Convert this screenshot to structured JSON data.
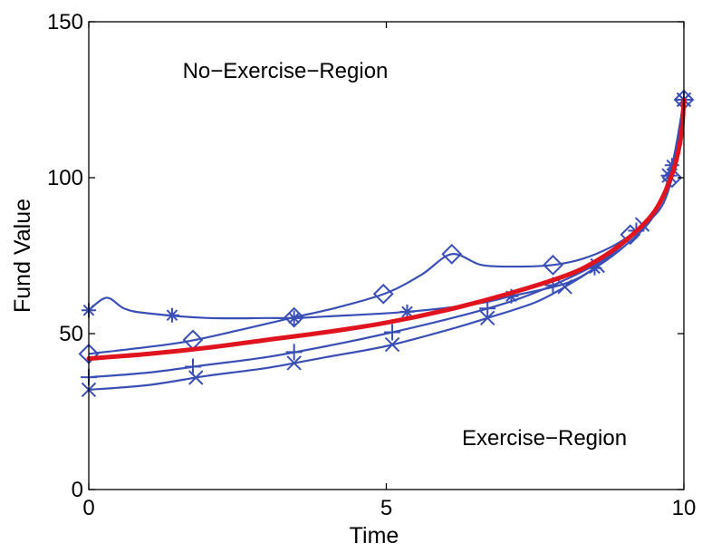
{
  "chart_data": {
    "type": "line",
    "title": "",
    "xlabel": "Time",
    "ylabel": "Fund Value",
    "xlim": [
      0,
      10
    ],
    "ylim": [
      0,
      150
    ],
    "xticks": [
      0,
      5,
      10
    ],
    "yticks": [
      0,
      50,
      100,
      150
    ],
    "grid": false,
    "annotations": [
      {
        "text": "No−Exercise−Region",
        "x": 2.1,
        "y": 136.5
      },
      {
        "text": "Exercise−Region",
        "x": 8.0,
        "y": 17.8
      }
    ],
    "colors": {
      "series": "#3a4fb5",
      "boundary": "#e0141e"
    },
    "series": [
      {
        "marker": "diamond",
        "x": [
          0,
          1.5,
          2.5,
          3.4,
          4.2,
          5.0,
          5.6,
          6.1,
          6.6,
          7.2,
          7.8,
          8.3,
          8.8,
          9.2,
          9.6,
          9.8,
          9.95,
          10
        ],
        "y": [
          43.5,
          47,
          51,
          55,
          58.5,
          63,
          69,
          75.5,
          72,
          71.5,
          72,
          74,
          78,
          83,
          90,
          100,
          115,
          125
        ],
        "markers_x": [
          0,
          1.75,
          3.45,
          4.95,
          6.1,
          7.8,
          9.1,
          9.8,
          10
        ]
      },
      {
        "marker": "asterisk",
        "x": [
          0,
          0.3,
          0.6,
          1.0,
          2.0,
          3.0,
          3.5,
          4.0,
          5.35,
          6.5,
          7.1,
          8.0,
          8.5,
          9.0,
          9.5,
          9.8,
          10
        ],
        "y": [
          57.5,
          61.5,
          58,
          56.5,
          55,
          55,
          55,
          55.5,
          57,
          59.5,
          62,
          66,
          71,
          78,
          88,
          104,
          125
        ],
        "markers_x": [
          0,
          1.4,
          3.45,
          5.35,
          7.1,
          8.5,
          9.8,
          10
        ]
      },
      {
        "marker": "plus",
        "x": [
          0,
          1.0,
          2.0,
          3.0,
          4.0,
          5.0,
          6.0,
          6.6,
          7.2,
          7.8,
          8.5,
          9.0,
          9.5,
          9.8,
          10
        ],
        "y": [
          36,
          37.5,
          40,
          42.5,
          46,
          50,
          54.5,
          57.5,
          61,
          65.5,
          72,
          79,
          89,
          103,
          125
        ],
        "markers_x": [
          0,
          1.75,
          3.45,
          5.1,
          6.7,
          7.8,
          9.2,
          9.75,
          10
        ]
      },
      {
        "marker": "cross",
        "x": [
          0,
          1.0,
          2.0,
          3.0,
          4.0,
          5.0,
          6.0,
          6.7,
          7.5,
          8.0,
          8.5,
          9.0,
          9.5,
          9.8,
          10
        ],
        "y": [
          32,
          33.5,
          36.5,
          39,
          42.5,
          46,
          51,
          55,
          60,
          65,
          71,
          79,
          89,
          103,
          125
        ],
        "markers_x": [
          0,
          1.8,
          3.45,
          5.1,
          6.7,
          8.0,
          8.55,
          9.3,
          9.75,
          10
        ]
      },
      {
        "marker": "none",
        "x": [
          0,
          1.0,
          2.0,
          3.0,
          4.0,
          5.0,
          6.0,
          7.0,
          8.0,
          8.5,
          9.0,
          9.5,
          9.8,
          9.95,
          10
        ],
        "y": [
          42,
          43.5,
          45.5,
          48,
          50.5,
          53.5,
          57.5,
          62.5,
          68.5,
          73,
          79.5,
          89,
          101,
          113,
          125
        ]
      }
    ]
  }
}
